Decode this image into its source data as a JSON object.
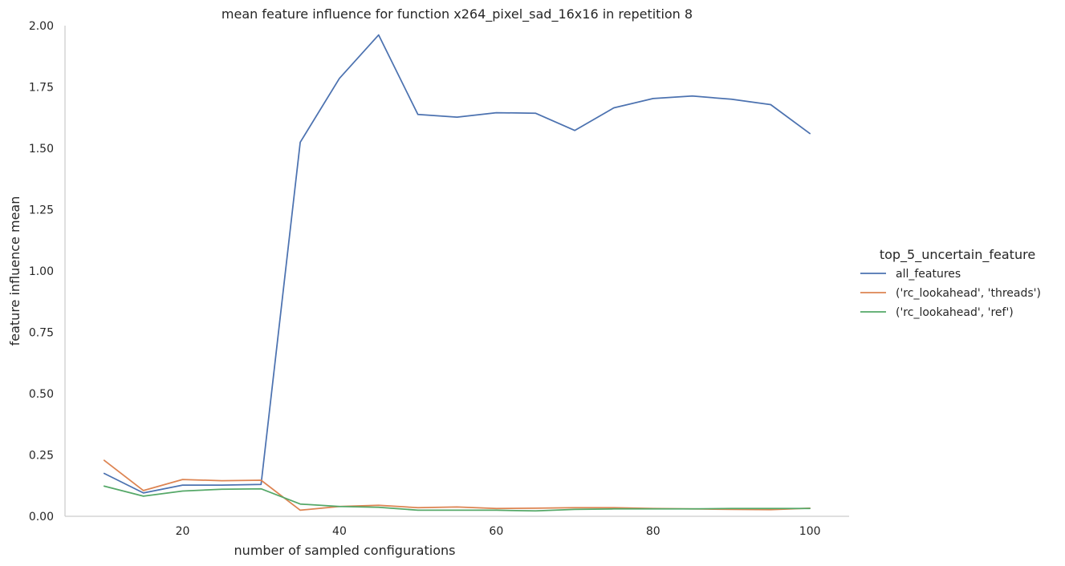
{
  "chart_data": {
    "type": "line",
    "title": "mean feature influence for function x264_pixel_sad_16x16 in repetition 8",
    "xlabel": "number of sampled configurations",
    "ylabel": "feature influence mean",
    "xlim": [
      5,
      105
    ],
    "ylim": [
      0,
      2.0
    ],
    "xticks": [
      20,
      40,
      60,
      80,
      100
    ],
    "yticks": [
      0.0,
      0.25,
      0.5,
      0.75,
      1.0,
      1.25,
      1.5,
      1.75,
      2.0
    ],
    "ytick_labels": [
      "0.00",
      "0.25",
      "0.50",
      "0.75",
      "1.00",
      "1.25",
      "1.50",
      "1.75",
      "2.00"
    ],
    "grid": false,
    "legend": {
      "title": "top_5_uncertain_feature",
      "placement": "outside-right"
    },
    "x": [
      10,
      15,
      20,
      25,
      30,
      35,
      40,
      45,
      50,
      55,
      60,
      65,
      70,
      75,
      80,
      85,
      90,
      95,
      100
    ],
    "series": [
      {
        "name": "all_features",
        "color": "#4c72b0",
        "values": [
          0.175,
          0.095,
          0.127,
          0.127,
          0.13,
          1.525,
          1.785,
          1.962,
          1.638,
          1.627,
          1.645,
          1.643,
          1.573,
          1.665,
          1.703,
          1.713,
          1.7,
          1.678,
          1.56
        ]
      },
      {
        "name": "('rc_lookahead', 'threads')",
        "color": "#dd8452",
        "values": [
          0.228,
          0.105,
          0.15,
          0.145,
          0.147,
          0.025,
          0.04,
          0.045,
          0.035,
          0.038,
          0.032,
          0.033,
          0.035,
          0.035,
          0.032,
          0.03,
          0.028,
          0.027,
          0.033
        ]
      },
      {
        "name": "('rc_lookahead', 'ref')",
        "color": "#55a868",
        "values": [
          0.123,
          0.082,
          0.103,
          0.11,
          0.112,
          0.05,
          0.04,
          0.037,
          0.025,
          0.025,
          0.025,
          0.022,
          0.028,
          0.03,
          0.03,
          0.03,
          0.032,
          0.032,
          0.032
        ]
      }
    ]
  }
}
